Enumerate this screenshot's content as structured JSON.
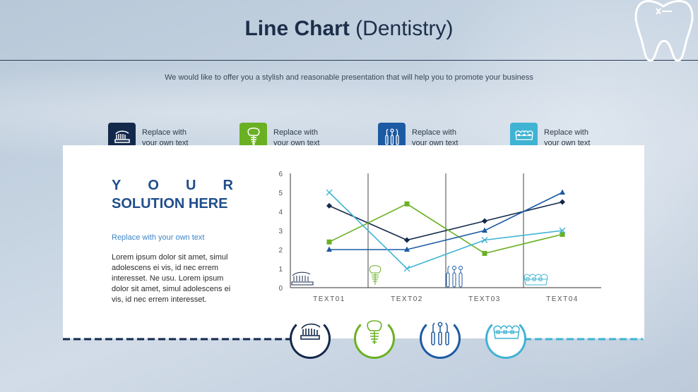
{
  "header": {
    "title_bold": "Line Chart",
    "title_normal": "(Dentistry)",
    "subtitle": "We would like to offer you a stylish and reasonable presentation that will help you to promote your business"
  },
  "items": [
    {
      "label_line1": "Replace with",
      "label_line2": "your own text",
      "icon": "toothbrush-icon",
      "color": "#13294b"
    },
    {
      "label_line1": "Replace with",
      "label_line2": "your own text",
      "icon": "dental-implant-icon",
      "color": "#6ab023"
    },
    {
      "label_line1": "Replace with",
      "label_line2": "your own text",
      "icon": "dental-tools-icon",
      "color": "#1c5aa3"
    },
    {
      "label_line1": "Replace with",
      "label_line2": "your own text",
      "icon": "braces-icon",
      "color": "#3fb3d4"
    }
  ],
  "side": {
    "heading_line1": [
      "Y",
      "O",
      "U",
      "R"
    ],
    "heading_line2": "SOLUTION HERE",
    "subheading": "Replace with your own text",
    "body": "Lorem ipsum dolor sit amet, simul adolescens ei vis, id nec errem interesset. Ne usu.  Lorem ipsum dolor sit amet, simul adolescens ei vis, id nec errem interesset."
  },
  "colors": {
    "navy": "#13294b",
    "green": "#6ab023",
    "blue": "#1c5aa3",
    "cyan": "#3fb3d4"
  },
  "chart_data": {
    "type": "line",
    "categories": [
      "TEXT01",
      "TEXT02",
      "TEXT03",
      "TEXT04"
    ],
    "ylim": [
      0,
      6
    ],
    "yticks": [
      "0",
      "1",
      "2",
      "3",
      "4",
      "5",
      "6"
    ],
    "series": [
      {
        "values": [
          4.3,
          2.5,
          3.5,
          4.5
        ],
        "color": "#13294b",
        "marker": "diamond"
      },
      {
        "values": [
          2.4,
          4.4,
          1.8,
          2.8
        ],
        "color": "#6ab023",
        "marker": "square"
      },
      {
        "values": [
          2.0,
          2.0,
          3.0,
          5.0
        ],
        "color": "#1c5aa3",
        "marker": "triangle"
      },
      {
        "values": [
          5.0,
          1.0,
          2.5,
          3.0
        ],
        "color": "#3fb3d4",
        "marker": "x"
      }
    ]
  }
}
